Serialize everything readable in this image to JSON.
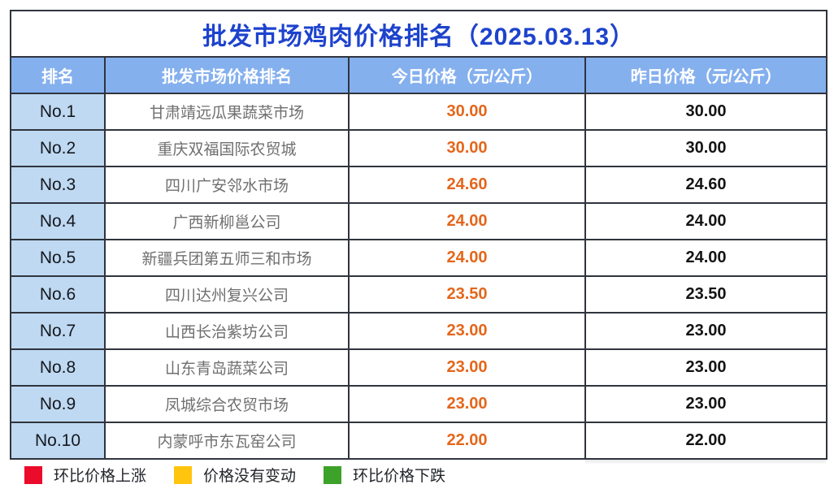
{
  "title": "批发市场鸡肉价格排名（2025.03.13）",
  "table": {
    "headers": [
      "排名",
      "批发市场价格排名",
      "今日价格（元/公斤）",
      "昨日价格（元/公斤）"
    ],
    "rows": [
      {
        "rank": "No.1",
        "market": "甘肃靖远瓜果蔬菜市场",
        "today": "30.00",
        "yesterday": "30.00"
      },
      {
        "rank": "No.2",
        "market": "重庆双福国际农贸城",
        "today": "30.00",
        "yesterday": "30.00"
      },
      {
        "rank": "No.3",
        "market": "四川广安邻水市场",
        "today": "24.60",
        "yesterday": "24.60"
      },
      {
        "rank": "No.4",
        "market": "广西新柳邕公司",
        "today": "24.00",
        "yesterday": "24.00"
      },
      {
        "rank": "No.5",
        "market": "新疆兵团第五师三和市场",
        "today": "24.00",
        "yesterday": "24.00"
      },
      {
        "rank": "No.6",
        "market": "四川达州复兴公司",
        "today": "23.50",
        "yesterday": "23.50"
      },
      {
        "rank": "No.7",
        "market": "山西长治紫坊公司",
        "today": "23.00",
        "yesterday": "23.00"
      },
      {
        "rank": "No.8",
        "market": "山东青岛蔬菜公司",
        "today": "23.00",
        "yesterday": "23.00"
      },
      {
        "rank": "No.9",
        "market": "凤城综合农贸市场",
        "today": "23.00",
        "yesterday": "23.00"
      },
      {
        "rank": "No.10",
        "market": "内蒙呼市东瓦窑公司",
        "today": "22.00",
        "yesterday": "22.00"
      }
    ]
  },
  "legend": [
    {
      "label": "环比价格上涨",
      "color": "#eb0c2c"
    },
    {
      "label": "价格没有变动",
      "color": "#ffc40e"
    },
    {
      "label": "环比价格下跌",
      "color": "#3da229"
    }
  ],
  "colors": {
    "title_text": "#1d43cd",
    "header_bg": "#85b0ee",
    "rank_cell_bg": "#bfd9f2",
    "today_price_text": "#e4661b",
    "yesterday_price_text": "#141414",
    "border": "#30343d"
  }
}
